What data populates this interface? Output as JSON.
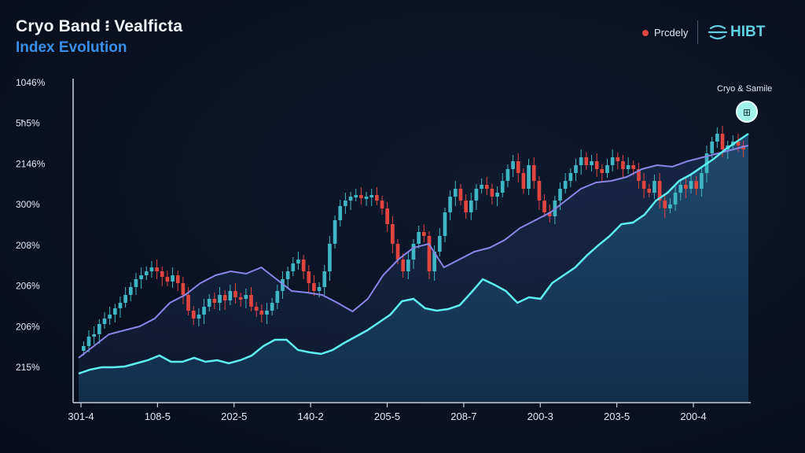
{
  "header": {
    "title": "Cryo Band ፧ Vealficta",
    "subtitle": "Index Evolution"
  },
  "legend": {
    "label": "Prcdely",
    "color": "#e0453f"
  },
  "brand": {
    "name": "HIBT",
    "icon": "hibt-logo-icon"
  },
  "colors": {
    "bullish": "#3fb6c4",
    "bearish": "#e0453f",
    "purple_line": "#8a86e6",
    "cyan_line": "#5ef0f0"
  },
  "chart_data": {
    "type": "line",
    "title": "Cryo Band ፧ Vealficta",
    "subtitle": "Index Evolution",
    "y_tick_labels": [
      "1046%",
      "5ħ5%",
      "2146%",
      "300%",
      "208%",
      "206%",
      "206%",
      "215%"
    ],
    "x_tick_labels": [
      "301-4",
      "108-5",
      "202-5",
      "140-2",
      "205-5",
      "208-7",
      "200-3",
      "203-5",
      "200-4"
    ],
    "annotation": {
      "text": "Cryo & Samile",
      "marker_label": "⊞"
    },
    "candles_close": [
      440,
      428,
      425,
      412,
      405,
      400,
      392,
      385,
      375,
      365,
      355,
      350,
      345,
      340,
      345,
      352,
      358,
      350,
      360,
      375,
      395,
      405,
      400,
      390,
      380,
      385,
      375,
      382,
      370,
      378,
      380,
      375,
      390,
      395,
      400,
      395,
      385,
      370,
      355,
      345,
      335,
      330,
      345,
      360,
      370,
      365,
      345,
      310,
      280,
      262,
      255,
      250,
      248,
      252,
      250,
      248,
      255,
      265,
      285,
      310,
      330,
      345,
      330,
      310,
      295,
      300,
      345,
      320,
      300,
      270,
      250,
      240,
      255,
      270,
      255,
      240,
      235,
      240,
      250,
      245,
      230,
      215,
      205,
      220,
      240,
      210,
      230,
      255,
      270,
      275,
      255,
      240,
      230,
      220,
      210,
      200,
      210,
      205,
      215,
      220,
      210,
      200,
      205,
      215,
      210,
      215,
      230,
      240,
      245,
      230,
      255,
      265,
      260,
      245,
      235,
      240,
      230,
      240,
      220,
      195,
      180,
      170,
      190,
      185,
      180,
      185,
      190
    ],
    "series": [
      {
        "name": "",
        "role": "lower cyan filled line",
        "values": [
          475,
          470,
          467,
          467,
          466,
          462,
          458,
          452,
          460,
          460,
          455,
          460,
          458,
          462,
          458,
          452,
          440,
          432,
          432,
          445,
          448,
          450,
          445,
          436,
          428,
          420,
          410,
          400,
          383,
          380,
          392,
          395,
          393,
          388,
          372,
          355,
          362,
          370,
          385,
          378,
          380,
          360,
          350,
          340,
          325,
          312,
          300,
          285,
          283,
          273,
          255,
          245,
          230,
          222,
          212,
          202,
          190,
          180,
          170
        ]
      },
      {
        "name": "",
        "role": "middle purple line",
        "values": [
          455,
          440,
          425,
          420,
          415,
          405,
          385,
          375,
          360,
          350,
          345,
          348,
          340,
          355,
          370,
          372,
          375,
          385,
          396,
          380,
          350,
          330,
          315,
          310,
          340,
          330,
          320,
          315,
          305,
          290,
          280,
          270,
          255,
          240,
          232,
          230,
          225,
          215,
          210,
          212,
          205,
          200,
          195,
          190,
          185
        ]
      }
    ]
  }
}
